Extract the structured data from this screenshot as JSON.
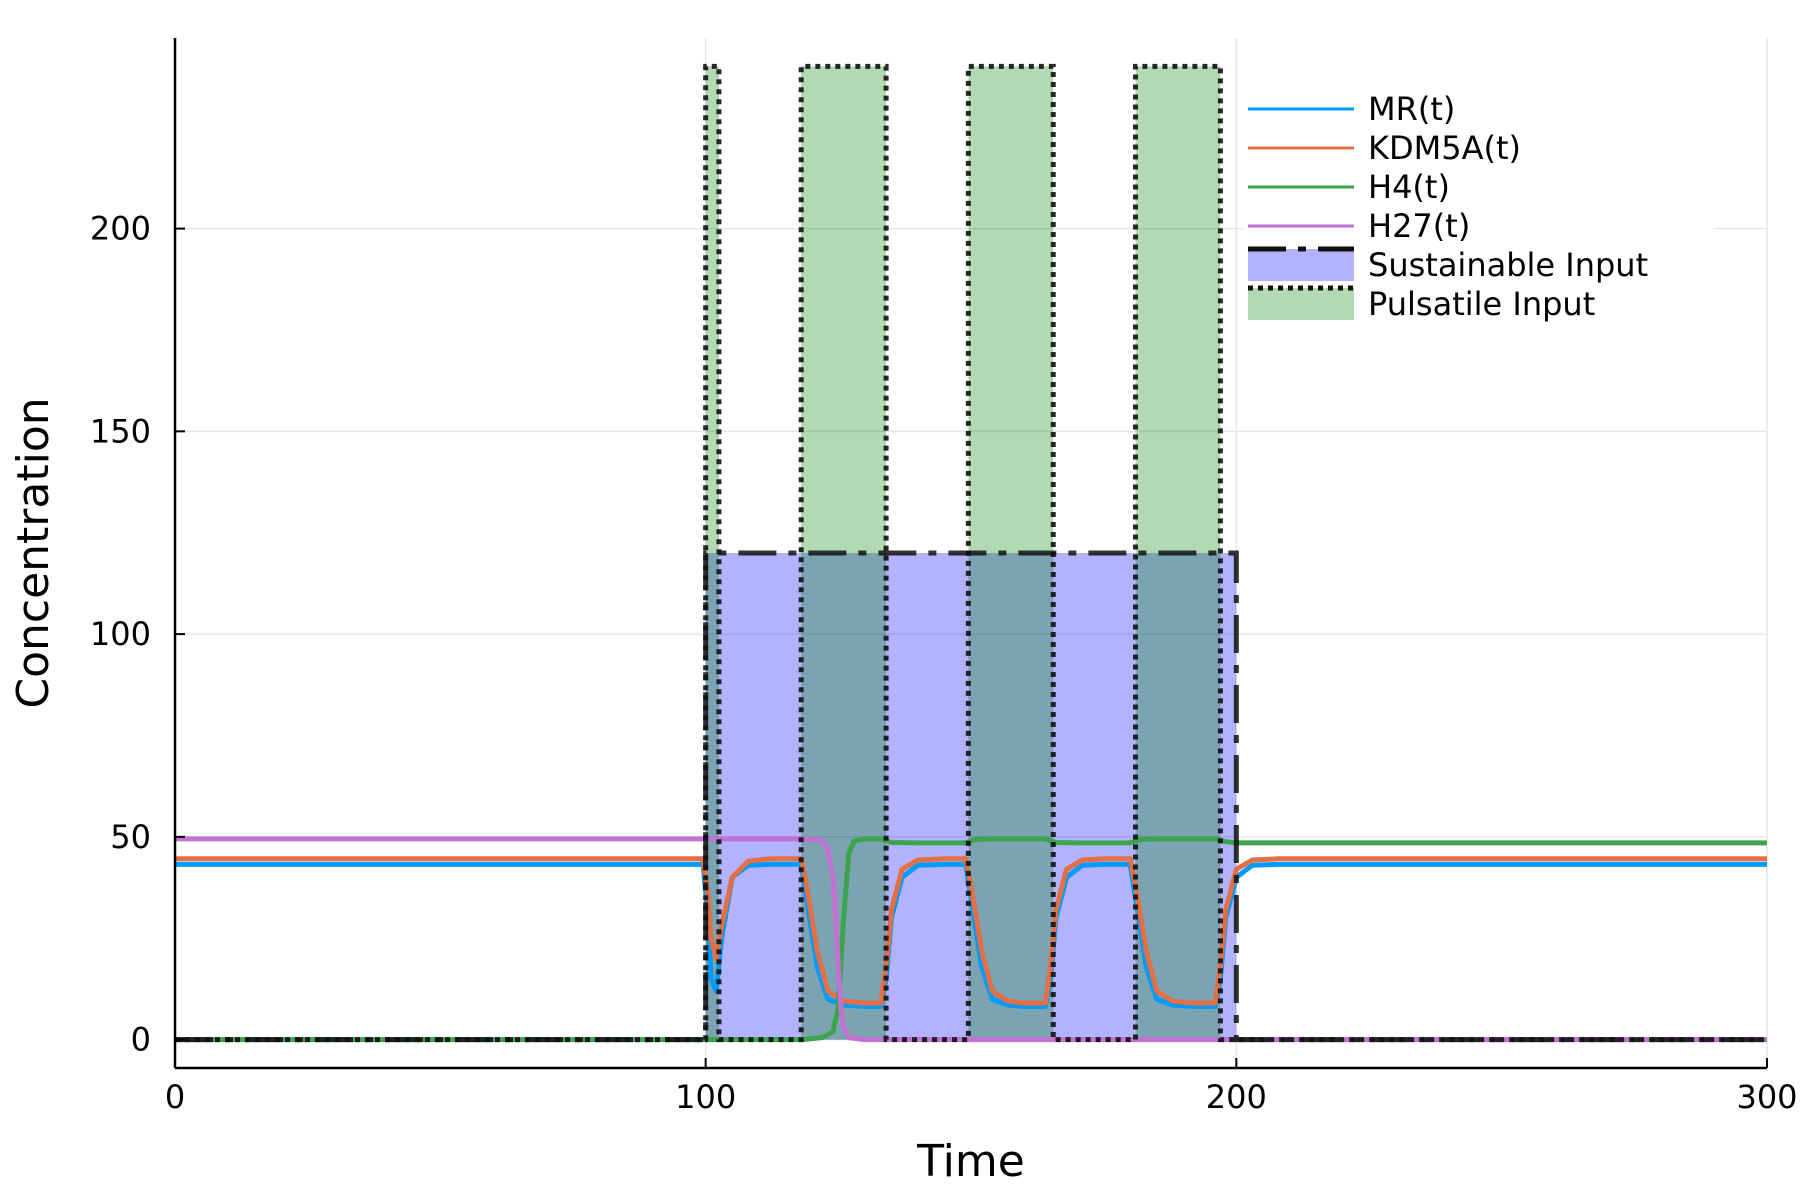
{
  "chart_data": {
    "type": "line",
    "xlabel": "Time",
    "ylabel": "Concentration",
    "xlim": [
      0,
      300
    ],
    "ylim": [
      -7,
      247
    ],
    "grid": true,
    "legend_position": "top-right",
    "x_ticks": [
      {
        "value": 0,
        "label": "0"
      },
      {
        "value": 100,
        "label": "100"
      },
      {
        "value": 200,
        "label": "200"
      },
      {
        "value": 300,
        "label": "300"
      }
    ],
    "y_ticks": [
      {
        "value": 0,
        "label": "0"
      },
      {
        "value": 50,
        "label": "50"
      },
      {
        "value": 100,
        "label": "100"
      },
      {
        "value": 150,
        "label": "150"
      },
      {
        "value": 200,
        "label": "200"
      }
    ],
    "series": [
      {
        "name": "MR(t)",
        "color": "#009af9",
        "kind": "line",
        "x": [
          0,
          99.5,
          100.5,
          101,
          102,
          103,
          105,
          108,
          112,
          118,
          119,
          121,
          123,
          126,
          130,
          133,
          134,
          135,
          137,
          140,
          145,
          149,
          150,
          152,
          154,
          157,
          160,
          164,
          165,
          166,
          168,
          171,
          175,
          180,
          181,
          183,
          185,
          188,
          192,
          196,
          197,
          198,
          200,
          203,
          208,
          215,
          300
        ],
        "y": [
          43.2,
          43.2,
          30,
          15,
          12,
          25,
          40,
          43,
          43.2,
          43.2,
          35,
          18,
          10,
          8.5,
          8.2,
          8.2,
          15,
          30,
          40,
          43,
          43.2,
          43.2,
          35,
          18,
          10,
          8.5,
          8.2,
          8.2,
          15,
          30,
          40,
          43,
          43.2,
          43.2,
          35,
          18,
          10,
          8.5,
          8.2,
          8.2,
          15,
          30,
          40,
          43,
          43.2,
          43.2,
          43.2
        ]
      },
      {
        "name": "KDM5A(t)",
        "color": "#e26f46",
        "kind": "line",
        "x": [
          0,
          99.5,
          100.5,
          101,
          102,
          103,
          105,
          108,
          112,
          118,
          119,
          121,
          123,
          126,
          130,
          133,
          134,
          135,
          137,
          140,
          145,
          149,
          150,
          152,
          154,
          157,
          160,
          164,
          165,
          166,
          168,
          171,
          175,
          180,
          181,
          183,
          185,
          188,
          192,
          196,
          197,
          198,
          200,
          203,
          208,
          215,
          300
        ],
        "y": [
          44.6,
          44.6,
          35,
          25,
          20,
          28,
          40,
          44,
          44.6,
          44.6,
          38,
          22,
          12,
          9.5,
          9,
          9,
          18,
          32,
          42,
          44.3,
          44.6,
          44.6,
          38,
          22,
          12,
          9.5,
          9,
          9,
          18,
          32,
          42,
          44.3,
          44.6,
          44.6,
          38,
          22,
          12,
          9.5,
          9,
          9,
          18,
          32,
          42,
          44.3,
          44.6,
          44.6,
          44.6
        ]
      },
      {
        "name": "H4(t)",
        "color": "#3da44d",
        "kind": "line",
        "x": [
          0,
          100,
          118,
          122,
          124,
          125,
          126,
          127,
          128,
          130,
          133,
          135,
          140,
          149,
          151,
          155,
          164,
          166,
          170,
          180,
          182,
          186,
          196,
          198,
          200,
          205,
          300
        ],
        "y": [
          0,
          0,
          0,
          0.5,
          2,
          8,
          30,
          46,
          49,
          49.5,
          49.5,
          48.6,
          48.5,
          48.5,
          49.4,
          49.5,
          49.5,
          48.6,
          48.5,
          48.5,
          49.4,
          49.5,
          49.5,
          48.8,
          48.5,
          48.5,
          48.5
        ]
      },
      {
        "name": "H27(t)",
        "color": "#c271d2",
        "kind": "line",
        "x": [
          0,
          100,
          118,
          120,
          122,
          123,
          124,
          124.5,
          125,
          125.5,
          126,
          127,
          130,
          300
        ],
        "y": [
          49.5,
          49.5,
          49.5,
          49.4,
          49,
          47,
          40,
          30,
          18,
          8,
          3,
          0.5,
          0,
          0
        ]
      },
      {
        "name": "Sustainable Input",
        "color": "#0000ff",
        "kind": "fill-dashdot",
        "x": [
          0,
          100,
          100,
          200,
          200,
          300
        ],
        "y": [
          0,
          0,
          120,
          120,
          0,
          0
        ]
      },
      {
        "name": "Pulsatile Input",
        "color": "#008000",
        "kind": "fill-dotted",
        "pulses": [
          [
            100,
            102.5
          ],
          [
            118,
            134
          ],
          [
            149.5,
            165.5
          ],
          [
            181,
            197
          ]
        ],
        "height": 240
      }
    ]
  }
}
